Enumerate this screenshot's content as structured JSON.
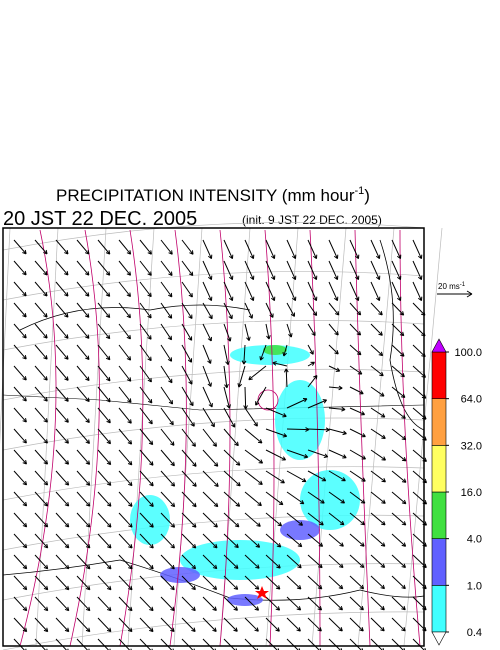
{
  "header": {
    "title": {
      "main": "PRECIPITATION INTENSITY (mm hour",
      "sup": "-1",
      "end": ")"
    },
    "valid_time": "20 JST 22 DEC. 2005",
    "init_time": "(init. 9 JST 22 DEC. 2005)"
  },
  "wind_scale": {
    "label": "20 ms",
    "sup": "-1"
  },
  "colorbar": {
    "levels": [
      {
        "value": 0.4,
        "label": "0.4"
      },
      {
        "value": 1,
        "label": "1.0"
      },
      {
        "value": 4,
        "label": "4.0"
      },
      {
        "value": 16,
        "label": "16.0"
      },
      {
        "value": 32,
        "label": "32.0"
      },
      {
        "value": 64,
        "label": "64.0"
      },
      {
        "value": 100,
        "label": "100.0"
      }
    ],
    "colors": [
      "#40ffff",
      "#6060ff",
      "#40e040",
      "#ffff60",
      "#ffa040",
      "#ff0000"
    ],
    "over": "#c000ff",
    "under": "#ffffff"
  }
}
